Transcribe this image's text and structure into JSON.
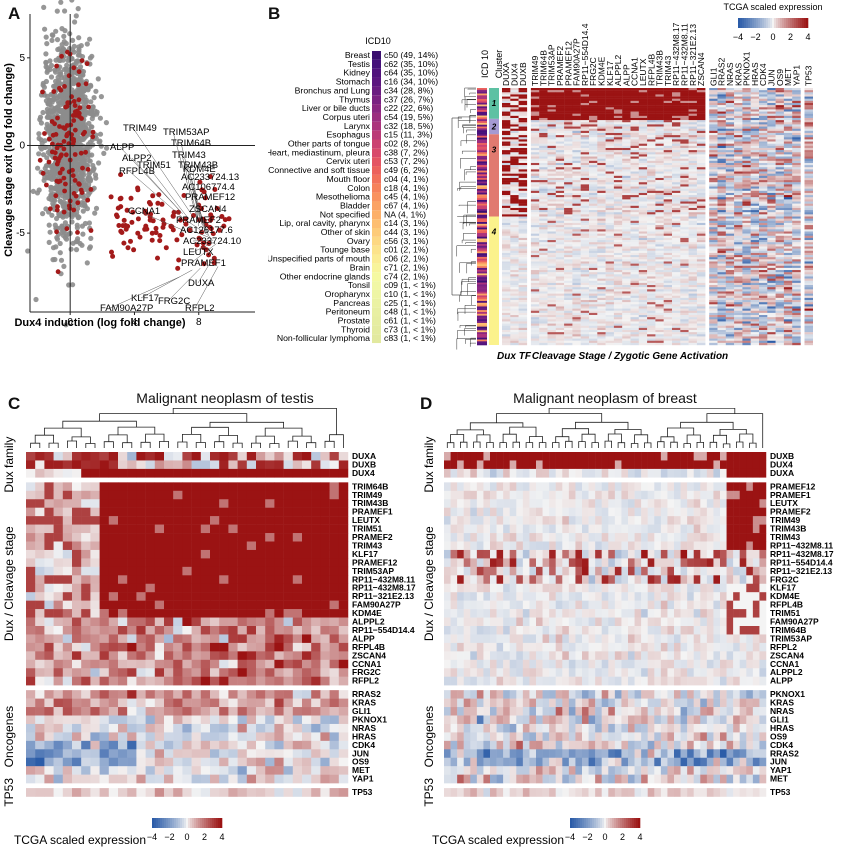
{
  "panels": {
    "A": {
      "label": "A",
      "xlabel": "Dux4 induction (log fold change)",
      "ylabel": "Cleavage stage exit (log fold change)",
      "xticks": [
        "0",
        "4",
        "8"
      ],
      "yticks": [
        "5",
        "0",
        "-5"
      ]
    },
    "B": {
      "label": "B",
      "legend_title": "ICD10",
      "side_labels": [
        "ICD 10",
        "Cluster"
      ],
      "cluster_labels": [
        "1",
        "2",
        "3",
        "4"
      ],
      "bottom_labels": [
        "Dux TF",
        "Cleavage Stage / Zygotic Gene Activation"
      ],
      "scale_title": "TCGA scaled expression",
      "scale_ticks": [
        "−4",
        "−2",
        "0",
        "2",
        "4"
      ]
    },
    "C": {
      "label": "C",
      "title": "Malignant neoplasm of testis",
      "groups": [
        "Dux family",
        "Dux / Cleavage stage",
        "Oncogenes",
        "TP53"
      ],
      "scale_title": "TCGA scaled expression",
      "scale_ticks": [
        "−4",
        "−2",
        "0",
        "2",
        "4"
      ]
    },
    "D": {
      "label": "D",
      "title": "Malignant neoplasm of breast",
      "groups": [
        "Dux family",
        "Dux / Cleavage stage",
        "Oncogenes",
        "TP53"
      ],
      "scale_title": "TCGA scaled expression",
      "scale_ticks": [
        "−4",
        "−2",
        "0",
        "2",
        "4"
      ]
    }
  },
  "chart_data": [
    {
      "type": "scatter",
      "panel": "A",
      "xlabel": "Dux4 induction (log fold change)",
      "ylabel": "Cleavage stage exit (log fold change)",
      "xlim": [
        -2.5,
        11.5
      ],
      "ylim": [
        -9.5,
        7.5
      ],
      "series_colors": {
        "background": "#8c8c8c",
        "highlighted": "#a31a1a"
      },
      "labeled_points": [
        {
          "label": "TRIM49",
          "x": 7.6,
          "y": -4.0
        },
        {
          "label": "TRIM53AP",
          "x": 7.9,
          "y": -4.2
        },
        {
          "label": "ALPP",
          "x": 6.9,
          "y": -3.8
        },
        {
          "label": "TRIM64B",
          "x": 8.1,
          "y": -4.3
        },
        {
          "label": "ALPP2",
          "x": 7.0,
          "y": -3.9
        },
        {
          "label": "TRIM51",
          "x": 7.3,
          "y": -4.1
        },
        {
          "label": "TRIM43",
          "x": 8.0,
          "y": -4.4
        },
        {
          "label": "RFPL4B",
          "x": 7.1,
          "y": -4.2
        },
        {
          "label": "TRIM43B",
          "x": 8.2,
          "y": -4.5
        },
        {
          "label": "KDM4E",
          "x": 8.0,
          "y": -4.6
        },
        {
          "label": "AC106774.4",
          "x": 8.3,
          "y": -4.7
        },
        {
          "label": "AC233724.13",
          "x": 8.4,
          "y": -4.8
        },
        {
          "label": "CCNA1",
          "x": 7.2,
          "y": -4.9
        },
        {
          "label": "PRAMEF12",
          "x": 8.5,
          "y": -5.0
        },
        {
          "label": "ZSCAN4",
          "x": 8.6,
          "y": -5.1
        },
        {
          "label": "PRAMEF2",
          "x": 8.7,
          "y": -5.2
        },
        {
          "label": "AC126177.6",
          "x": 8.8,
          "y": -5.3
        },
        {
          "label": "AC233724.10",
          "x": 8.9,
          "y": -5.4
        },
        {
          "label": "LEUTX",
          "x": 9.0,
          "y": -5.5
        },
        {
          "label": "PRAMEF1",
          "x": 9.1,
          "y": -5.6
        },
        {
          "label": "DUXA",
          "x": 8.9,
          "y": -6.4
        },
        {
          "label": "RFPL2",
          "x": 9.2,
          "y": -6.9
        },
        {
          "label": "KLF17",
          "x": 7.6,
          "y": -7.1
        },
        {
          "label": "FRG2C",
          "x": 8.1,
          "y": -7.0
        },
        {
          "label": "FAM90A27P",
          "x": 6.8,
          "y": -7.5
        }
      ]
    },
    {
      "type": "heatmap",
      "panel": "B",
      "icd10_categories": [
        "Breast",
        "Testis",
        "Kidney",
        "Stomach",
        "Bronchus and Lung",
        "Thymus",
        "Liver or bile ducts",
        "Corpus uteri",
        "Larynx",
        "Esophagus",
        "Other parts of tongue",
        "Heart, mediastinum, pleura",
        "Cervix uteri",
        "Connective and soft tissue",
        "Mouth floor",
        "Colon",
        "Mesothelioma",
        "Bladder",
        "Not specified",
        "Lip, oral cavity, pharynx",
        "Other of skin",
        "Ovary",
        "Tounge base",
        "Unspecified parts of mouth",
        "Brain",
        "Other endocrine glands",
        "Tonsil",
        "Oropharynx",
        "Pancreas",
        "Peritoneum",
        "Prostate",
        "Thyroid",
        "Non-follicular lymphoma"
      ],
      "icd10_codes": [
        "c50 (49, 14%)",
        "c62 (35, 10%)",
        "c64 (35, 10%)",
        "c16 (34, 10%)",
        "c34 (28, 8%)",
        "c37 (26, 7%)",
        "c22 (22, 6%)",
        "c54 (19, 5%)",
        "c32 (18, 5%)",
        "c15 (11, 3%)",
        "c02 (8, 2%)",
        "c38 (7, 2%)",
        "c53 (7, 2%)",
        "c49 (6, 2%)",
        "c04 (4, 1%)",
        "c18 (4, 1%)",
        "c45 (4, 1%)",
        "c67 (4, 1%)",
        "NA (4, 1%)",
        "c14 (3, 1%)",
        "c44 (3, 1%)",
        "c56 (3, 1%)",
        "c01 (2, 1%)",
        "c06 (2, 1%)",
        "c71 (2, 1%)",
        "c74 (2, 1%)",
        "c09 (1, < 1%)",
        "c10 (1, < 1%)",
        "c25 (1, < 1%)",
        "c48 (1, < 1%)",
        "c61 (1, < 1%)",
        "c73 (1, < 1%)",
        "c83 (1, < 1%)"
      ],
      "icd10_colors": [
        "#3b0f70",
        "#45107a",
        "#51127c",
        "#5c167f",
        "#6a1c81",
        "#7a2182",
        "#8a2681",
        "#9b2d7f",
        "#ab337c",
        "#bb3a77",
        "#cb4271",
        "#d84a6b",
        "#e45563",
        "#ec625d",
        "#f2725c",
        "#f6825c",
        "#f9925f",
        "#fba264",
        "#fcb06a",
        "#fdbe71",
        "#fdcb79",
        "#fdd882",
        "#fce38b",
        "#fbec93",
        "#f8f49b",
        "#f5f9a1",
        "#f1f7a5",
        "#eef5a4",
        "#ebf2a3",
        "#e8efa2",
        "#e6eda1",
        "#e4eba0",
        "#e2e99f"
      ],
      "dux_tf": [
        "DUXA",
        "DUX4",
        "DUXB"
      ],
      "zga_genes": [
        "TRIM49",
        "TRIM64B",
        "TRIM53AP",
        "PRAMEF2",
        "PRAMEF12",
        "FAM90A27P",
        "RP11−554D14.4",
        "FRG2C",
        "KDM4E",
        "KLF17",
        "ALPPL2",
        "ALPP",
        "CCNA1",
        "LEUTX",
        "RFPL4B",
        "TRIM43B",
        "TRIM43",
        "RP11−432M8.17",
        "RP11−432M8.11",
        "RP11−321E2.13",
        "ZSCAN4"
      ],
      "oncogenes": [
        "GLI1",
        "RRAS2",
        "NRAS",
        "KRAS",
        "PKNOX1",
        "HRAS",
        "CDK4",
        "JUN",
        "OS9",
        "MET",
        "YAP1"
      ],
      "tp53": [
        "TP53"
      ],
      "cluster_colors": [
        "#5dc1a3",
        "#a59ad3",
        "#e17a70",
        "#fbf28c"
      ],
      "color_scale": {
        "min": -4,
        "max": 4,
        "low": "#2b5ca8",
        "mid": "#f4f4f4",
        "high": "#9b1313"
      }
    },
    {
      "type": "heatmap",
      "panel": "C",
      "title": "Malignant neoplasm of testis",
      "rows": {
        "Dux family": [
          "DUXA",
          "DUXB",
          "DUX4"
        ],
        "Dux / Cleavage stage": [
          "TRIM64B",
          "TRIM49",
          "TRIM43B",
          "PRAMEF1",
          "LEUTX",
          "TRIM51",
          "PRAMEF2",
          "TRIM43",
          "KLF17",
          "PRAMEF12",
          "TRIM53AP",
          "RP11−432M8.11",
          "RP11−432M8.17",
          "RP11−321E2.13",
          "FAM90A27P",
          "KDM4E",
          "ALPPL2",
          "RP11−554D14.4",
          "ALPP",
          "RFPL4B",
          "ZSCAN4",
          "CCNA1",
          "FRG2C",
          "RFPL2"
        ],
        "Oncogenes": [
          "RRAS2",
          "KRAS",
          "GLI1",
          "PKNOX1",
          "NRAS",
          "HRAS",
          "CDK4",
          "JUN",
          "OS9",
          "MET",
          "YAP1"
        ],
        "TP53": [
          "TP53"
        ]
      },
      "n_samples": 35,
      "color_scale": {
        "min": -4,
        "max": 4
      }
    },
    {
      "type": "heatmap",
      "panel": "D",
      "title": "Malignant neoplasm of breast",
      "rows": {
        "Dux family": [
          "DUXB",
          "DUX4",
          "DUXA"
        ],
        "Dux / Cleavage stage": [
          "PRAMEF12",
          "PRAMEF1",
          "LEUTX",
          "PRAMEF2",
          "TRIM49",
          "TRIM43B",
          "TRIM43",
          "RP11−432M8.11",
          "RP11−432M8.17",
          "RP11−554D14.4",
          "RP11−321E2.13",
          "FRG2C",
          "KLF17",
          "KDM4E",
          "RFPL4B",
          "TRIM51",
          "FAM90A27P",
          "TRIM64B",
          "TRIM53AP",
          "RFPL2",
          "ZSCAN4",
          "CCNA1",
          "ALPPL2",
          "ALPP"
        ],
        "Oncogenes": [
          "PKNOX1",
          "KRAS",
          "NRAS",
          "GLI1",
          "HRAS",
          "OS9",
          "CDK4",
          "RRAS2",
          "JUN",
          "YAP1",
          "MET"
        ],
        "TP53": [
          "TP53"
        ]
      },
      "n_samples": 49,
      "color_scale": {
        "min": -4,
        "max": 4
      }
    }
  ]
}
